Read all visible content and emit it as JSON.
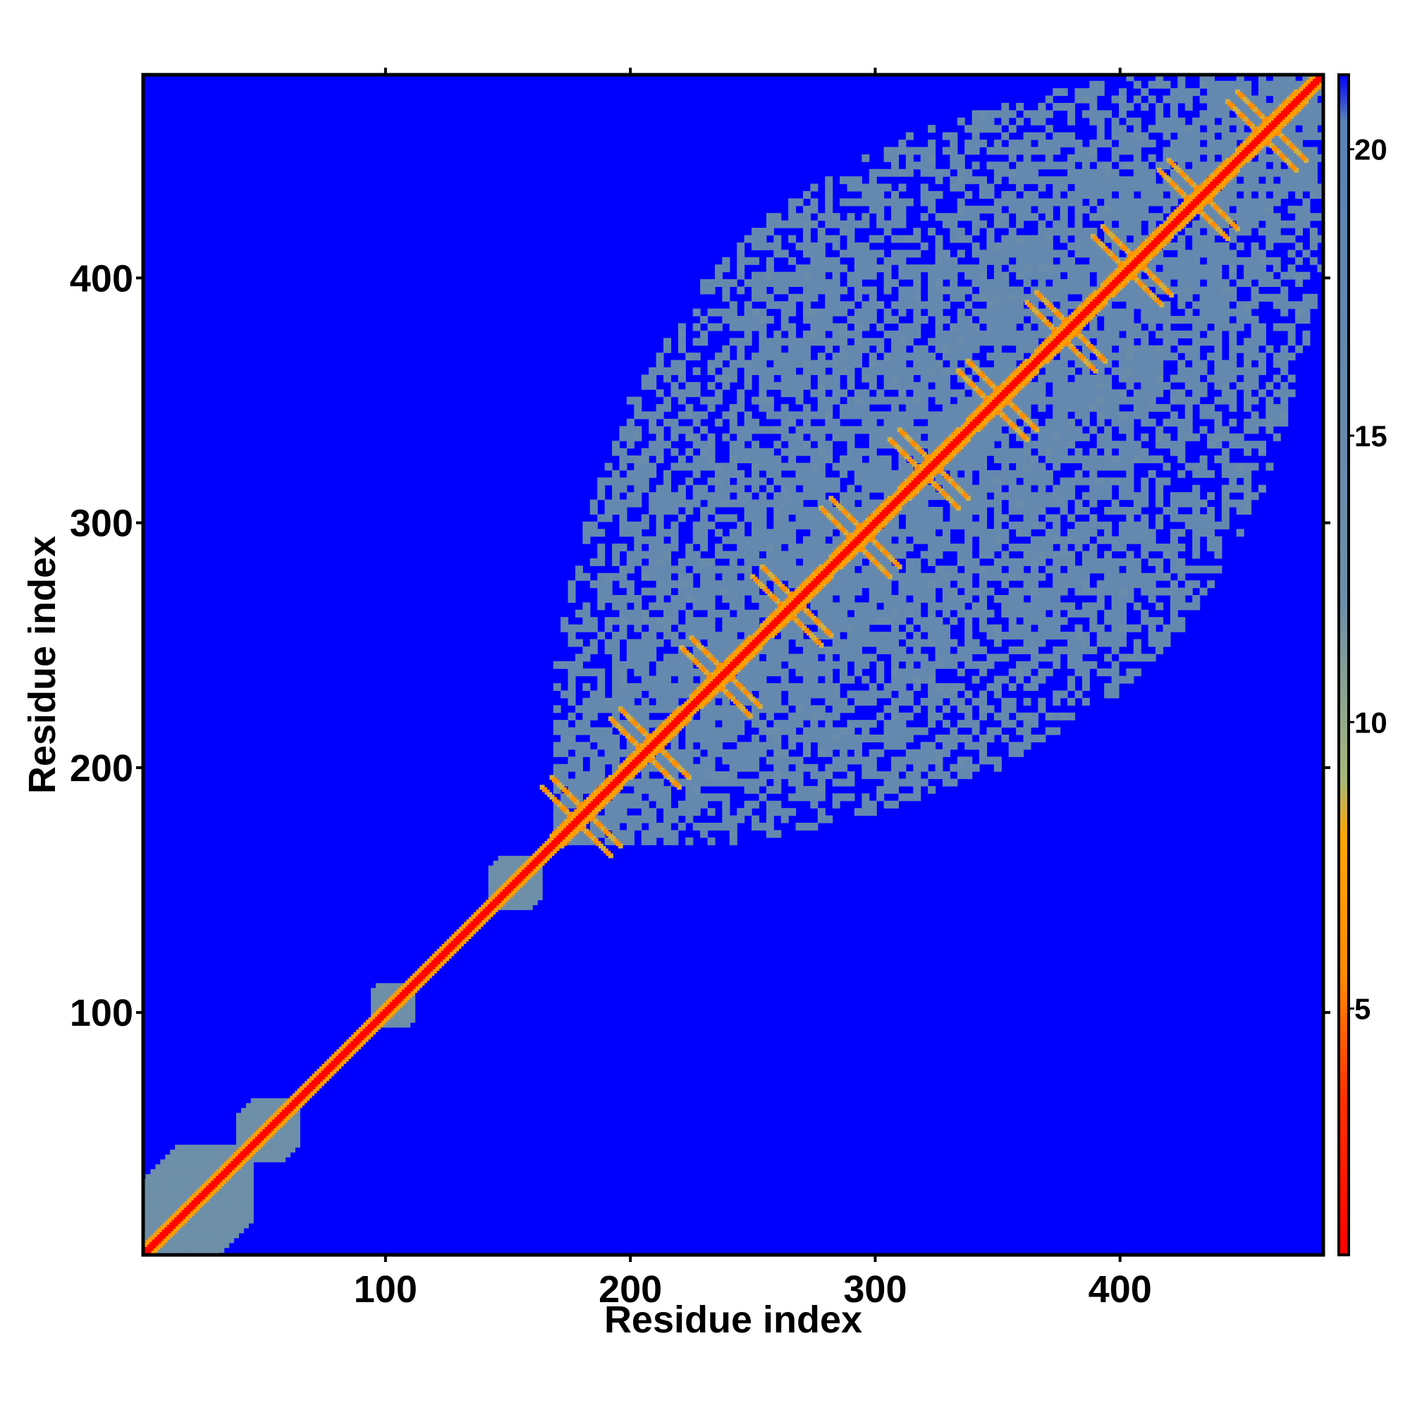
{
  "chart_data": {
    "type": "heatmap",
    "title": "",
    "xlabel": "Residue index",
    "ylabel": "Residue index",
    "xlim": [
      1,
      483
    ],
    "ylim": [
      1,
      483
    ],
    "x_ticks": [
      100,
      200,
      300,
      400
    ],
    "y_ticks": [
      100,
      200,
      300,
      400
    ],
    "x_tick_labels": [
      "100",
      "200",
      "300",
      "400"
    ],
    "y_tick_labels": [
      "100",
      "200",
      "300",
      "400"
    ],
    "colorbar": {
      "range": [
        0.7,
        21.3
      ],
      "ticks": [
        5,
        10,
        15,
        20
      ],
      "tick_labels": [
        "5",
        "10",
        "15",
        "20"
      ],
      "colors": [
        {
          "value": 0.7,
          "color": "#ff0000"
        },
        {
          "value": 3.5,
          "color": "#ff3300"
        },
        {
          "value": 5.5,
          "color": "#ff8800"
        },
        {
          "value": 8.0,
          "color": "#ffa500"
        },
        {
          "value": 9.0,
          "color": "#a8b87a"
        },
        {
          "value": 12.0,
          "color": "#6e8fa8"
        },
        {
          "value": 20.5,
          "color": "#5a82b4"
        },
        {
          "value": 21.3,
          "color": "#0000ff"
        }
      ]
    },
    "background_color": "#0000ff",
    "diagonal_value": 1,
    "contact_blocks": [
      {
        "start": 1,
        "end": 45,
        "value": 12
      },
      {
        "start": 40,
        "end": 65,
        "value": 12
      },
      {
        "start": 95,
        "end": 112,
        "value": 12
      },
      {
        "start": 143,
        "end": 163,
        "value": 12
      },
      {
        "start": 170,
        "end": 483,
        "value": 16
      }
    ],
    "sheet_repeats_centers": [
      180,
      208,
      237,
      266,
      294,
      322,
      350,
      378,
      405,
      432,
      460
    ]
  }
}
